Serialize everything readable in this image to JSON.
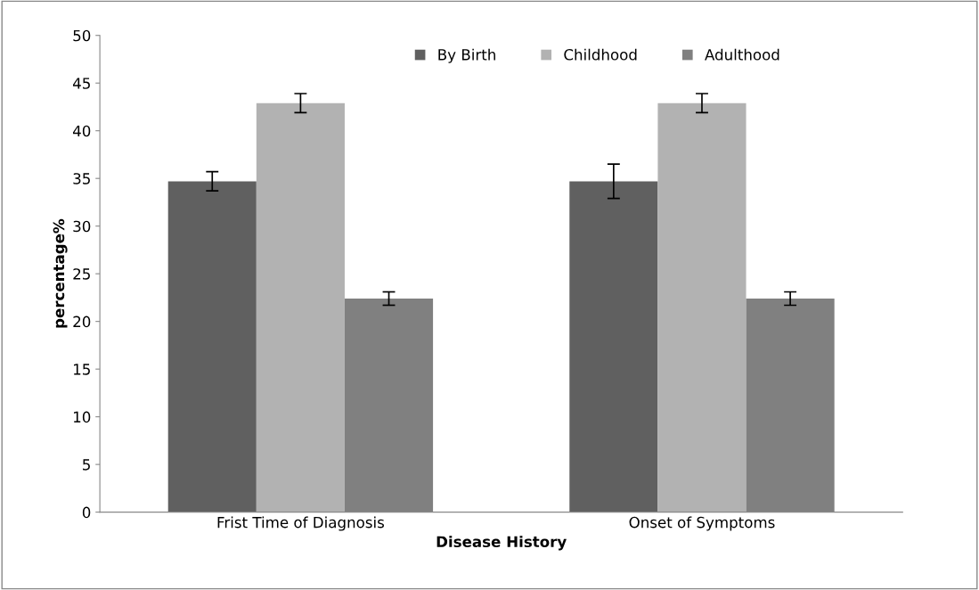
{
  "chart_data": {
    "type": "bar",
    "xlabel": "Disease History",
    "ylabel": "percentage%",
    "categories": [
      "Frist Time of Diagnosis",
      "Onset of Symptoms"
    ],
    "series": [
      {
        "name": "By Birth",
        "color": "#606060",
        "values": [
          34.7,
          34.7
        ],
        "errors": [
          1.0,
          1.8
        ]
      },
      {
        "name": "Childhood",
        "color": "#b2b2b2",
        "values": [
          42.9,
          42.9
        ],
        "errors": [
          1.0,
          1.0
        ]
      },
      {
        "name": "Adulthood",
        "color": "#808080",
        "values": [
          22.4,
          22.4
        ],
        "errors": [
          0.7,
          0.7
        ]
      }
    ],
    "ylim": [
      0,
      50
    ],
    "yticks": [
      0,
      5,
      10,
      15,
      20,
      25,
      30,
      35,
      40,
      45,
      50
    ],
    "grid": false,
    "legend": "top"
  }
}
